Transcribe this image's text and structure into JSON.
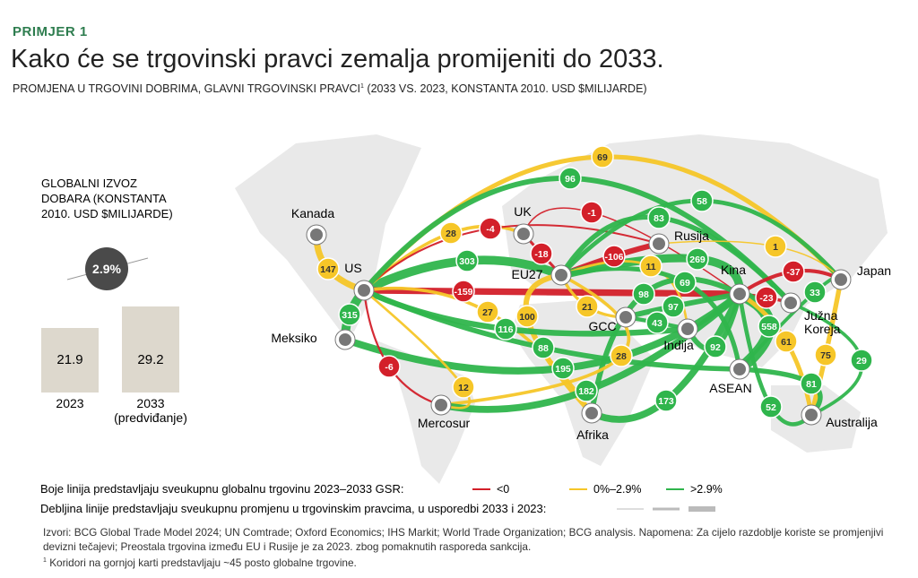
{
  "header": {
    "label": "PRIMJER 1",
    "title": "Kako će se trgovinski pravci zemalja promijeniti do 2033.",
    "subtitle": "PROMJENA U TRGOVINI DOBRIMA, GLAVNI TRGOVINSKI PRAVCI",
    "subtitle_note": "1",
    "subtitle_tail": "(2033 VS. 2023, KONSTANTA 2010. USD $MILIJARDE)"
  },
  "global": {
    "title_lines": [
      "GLOBALNI IZVOZ",
      "DOBARA (KONSTANTA",
      "2010. USD $MILIJARDE)"
    ],
    "growth_label": "2.9%",
    "bars": [
      {
        "label_lines": [
          "2023"
        ],
        "value": 21.9
      },
      {
        "label_lines": [
          "2033",
          "(predviđanje)"
        ],
        "value": 29.2
      }
    ]
  },
  "nodes": [
    {
      "label": "Kanada"
    },
    {
      "label": "US"
    },
    {
      "label": "Meksiko"
    },
    {
      "label": "Mercosur"
    },
    {
      "label": "UK"
    },
    {
      "label": "EU27"
    },
    {
      "label": "Rusija"
    },
    {
      "label": "GCC"
    },
    {
      "label": "Indija"
    },
    {
      "label": "Kina"
    },
    {
      "label": "Japan"
    },
    {
      "label_lines": [
        "Južna",
        "Koreja"
      ]
    },
    {
      "label": "ASEAN"
    },
    {
      "label": "Afrika"
    },
    {
      "label": "Australija"
    }
  ],
  "routes": [
    {
      "from": "US",
      "to": "Kanada",
      "value": 147,
      "legend": 1
    },
    {
      "from": "US",
      "to": "Meksiko",
      "value": 315,
      "legend": 2
    },
    {
      "from": "US",
      "to": "EU27",
      "value": 303,
      "legend": 2
    },
    {
      "from": "US",
      "to": "UK",
      "value": 28,
      "legend": 1
    },
    {
      "from": "US",
      "to": "Rusija",
      "value": -4,
      "legend": 0
    },
    {
      "from": "US",
      "to": "Kina",
      "value": -159,
      "legend": 0
    },
    {
      "from": "US",
      "to": "Japan",
      "value": 69,
      "legend": 1
    },
    {
      "from": "US",
      "to": "Južna Koreja",
      "value": 96,
      "legend": 2
    },
    {
      "from": "UK",
      "to": "Kina",
      "value": -1,
      "legend": 0
    },
    {
      "from": "UK",
      "to": "EU27",
      "value": -18,
      "legend": 0
    },
    {
      "from": "EU27",
      "to": "Rusija",
      "value": -106,
      "legend": 0
    },
    {
      "from": "EU27",
      "to": "Južna Koreja",
      "value": 83,
      "legend": 2
    },
    {
      "from": "EU27",
      "to": "Japan",
      "value": 58,
      "legend": 2
    },
    {
      "from": "EU27",
      "to": "Kina",
      "value": 269,
      "legend": 2
    },
    {
      "from": "EU27",
      "to": "Indija",
      "value": 11,
      "legend": 1
    },
    {
      "from": "Rusija",
      "to": "Japan",
      "value": 1,
      "legend": 1
    },
    {
      "from": "Kina",
      "to": "Japan",
      "value": -37,
      "legend": 0
    },
    {
      "from": "Kina",
      "to": "Južna Koreja",
      "value": -23,
      "legend": 0
    },
    {
      "from": "Japan",
      "to": "ASEAN",
      "value": 33,
      "legend": 2
    },
    {
      "from": "EU27",
      "to": "ASEAN",
      "value": 69,
      "legend": 2
    },
    {
      "from": "Kina",
      "to": "Afrika",
      "value": 98,
      "legend": 2
    },
    {
      "from": "GCC",
      "to": "Kina",
      "value": 97,
      "legend": 2
    },
    {
      "from": "GCC",
      "to": "Indija",
      "value": 43,
      "legend": 2
    },
    {
      "from": "EU27",
      "to": "GCC",
      "value": 21,
      "legend": 1
    },
    {
      "from": "US",
      "to": "Afrika",
      "value": 27,
      "legend": 1
    },
    {
      "from": "EU27",
      "to": "Afrika",
      "value": 100,
      "legend": 1
    },
    {
      "from": "US",
      "to": "Indija",
      "value": 116,
      "legend": 2
    },
    {
      "from": "US",
      "to": "ASEAN",
      "value": 88,
      "legend": 2
    },
    {
      "from": "Meksiko",
      "to": "Kina",
      "value": 195,
      "legend": 2
    },
    {
      "from": "EU27",
      "to": "Mercosur",
      "value": 28,
      "legend": 1
    },
    {
      "from": "Kina",
      "to": "Indija",
      "value": 92,
      "legend": 2
    },
    {
      "from": "Kina",
      "to": "ASEAN",
      "value": 558,
      "legend": 2
    },
    {
      "from": "Kina",
      "to": "Australija",
      "value": 61,
      "legend": 1
    },
    {
      "from": "Japan",
      "to": "Australija",
      "value": 75,
      "legend": 1
    },
    {
      "from": "Južna Koreja",
      "to": "Australija",
      "value": 29,
      "legend": 2
    },
    {
      "from": "ASEAN",
      "to": "Australija",
      "value": 81,
      "legend": 2
    },
    {
      "from": "Kina",
      "to": "Australija",
      "value": 52,
      "legend": 2
    },
    {
      "from": "Mercosur",
      "to": "Kina",
      "value": 182,
      "legend": 2
    },
    {
      "from": "Afrika",
      "to": "Kina",
      "value": 173,
      "legend": 2
    },
    {
      "from": "US",
      "to": "Mercosur",
      "value": 12,
      "legend": 1
    },
    {
      "from": "US",
      "to": "Mercosur",
      "value": -6,
      "legend": 0
    }
  ],
  "legend": {
    "color_text": "Boje linija predstavljaju sveukupnu globalnu trgovinu 2023–2033 GSR:",
    "items": [
      {
        "label": "<0",
        "color": "#d3202a"
      },
      {
        "label": "0%–2.9%",
        "color": "#f6c628"
      },
      {
        "label": ">2.9%",
        "color": "#2fb54c"
      }
    ],
    "width_text": "Debljina linije predstavljaju sveukupnu promjenu u trgovinskim pravcima, u usporedbi 2033 i 2023:"
  },
  "sources": "Izvori: BCG Global Trade Model 2024; UN Comtrade; Oxford Economics; IHS Markit; World Trade Organization; BCG analysis. Napomena: Za cijelo razdoblje koriste se promjenjivi devizni tečajevi; Preostala trgovina između EU i Rusije je za 2023. zbog pomaknutih rasporeda sankcija.",
  "footnote": {
    "mark": "1",
    "text": "Koridori na gornjoj karti predstavljaju ~45 posto globalne trgovine."
  }
}
